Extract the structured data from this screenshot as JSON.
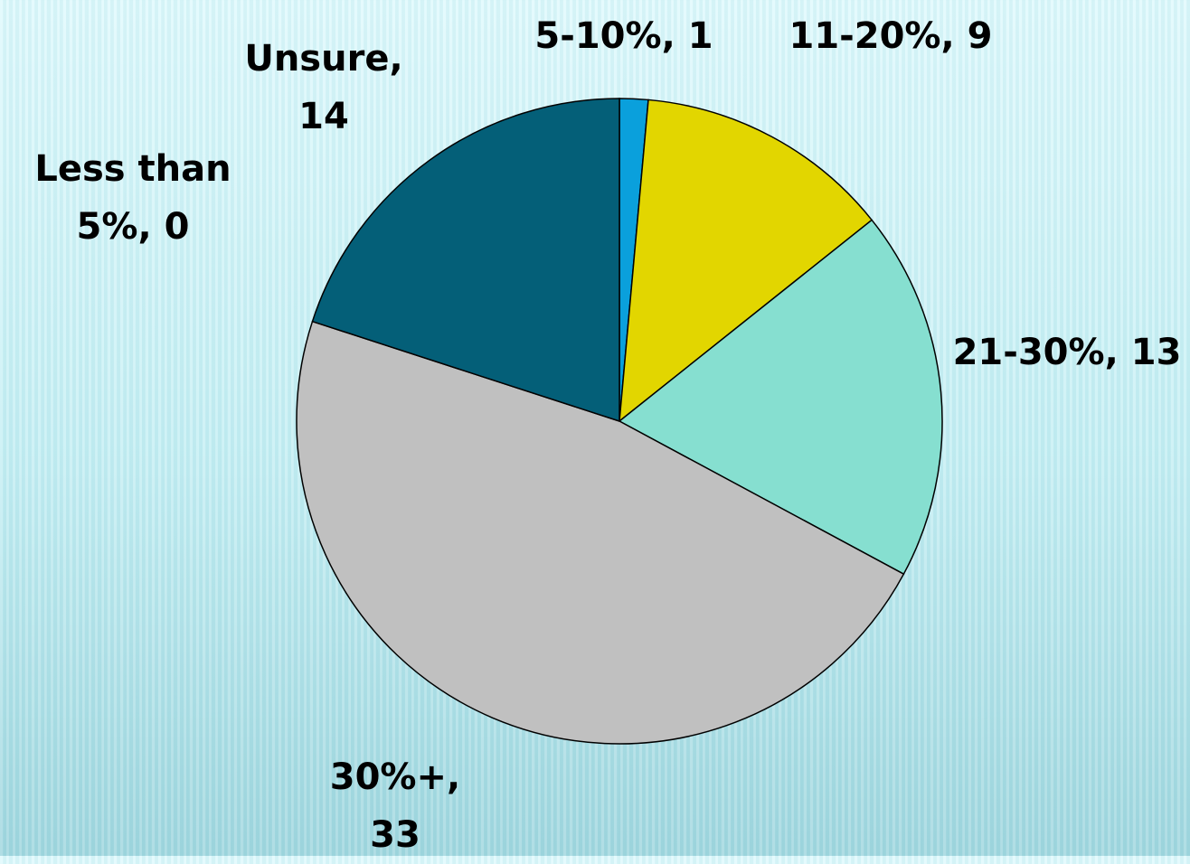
{
  "chart_data": {
    "type": "pie",
    "categories": [
      "Less than 5%",
      "5-10%",
      "11-20%",
      "21-30%",
      "30%+",
      "Unsure"
    ],
    "values": [
      0,
      1,
      9,
      13,
      33,
      14
    ],
    "colors": [
      "#1f3f8f",
      "#0aa0dc",
      "#e2d600",
      "#86dfd0",
      "#c0c0c0",
      "#045f78"
    ],
    "separator": ","
  }
}
